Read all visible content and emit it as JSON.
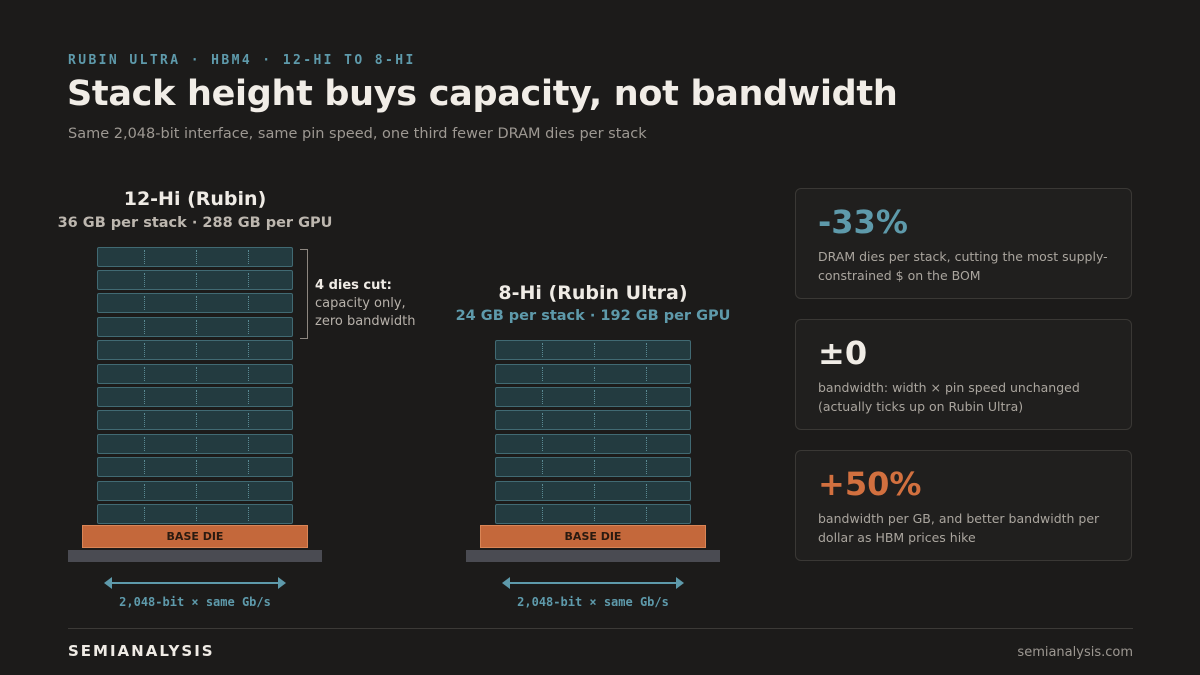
{
  "kicker": "RUBIN ULTRA · HBM4 · 12-HI TO 8-HI",
  "title": "Stack height buys capacity, not bandwidth",
  "subtitle": "Same 2,048-bit interface, same pin speed, one third fewer DRAM dies per stack",
  "stacks": [
    {
      "heading": "12-Hi (Rubin)",
      "capacity": "36 GB per stack · 288 GB per GPU",
      "dram_dies": 12,
      "base_die_label": "BASE DIE",
      "interface_label": "2,048-bit × same Gb/s"
    },
    {
      "heading": "8-Hi (Rubin Ultra)",
      "capacity": "24 GB per stack · 192 GB per GPU",
      "dram_dies": 8,
      "base_die_label": "BASE DIE",
      "interface_label": "2,048-bit × same Gb/s"
    }
  ],
  "cut_note": {
    "title": "4 dies cut:",
    "line1": "capacity only,",
    "line2": "zero bandwidth"
  },
  "cards": [
    {
      "value": "-33%",
      "desc": "DRAM dies per stack, cutting the most supply-constrained $ on the BOM"
    },
    {
      "value": "±0",
      "desc": "bandwidth: width × pin speed unchanged (actually ticks up on Rubin Ultra)"
    },
    {
      "value": "+50%",
      "desc": "bandwidth per GB, and better bandwidth per dollar as HBM prices hike"
    }
  ],
  "footer": {
    "brand": "SEMIANALYSIS",
    "site": "semianalysis.com"
  },
  "colors": {
    "accent_teal": "#5e9aab",
    "accent_orange": "#d2703f",
    "text_light": "#f0ece6"
  }
}
